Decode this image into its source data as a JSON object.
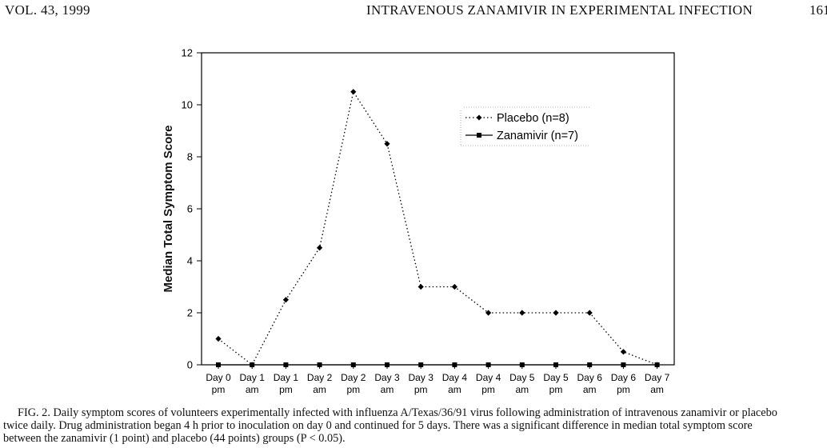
{
  "header": {
    "volume": "VOL. 43, 1999",
    "title": "INTRAVENOUS ZANAMIVIR IN EXPERIMENTAL INFECTION",
    "page": "161"
  },
  "chart_data": {
    "type": "line",
    "title": "",
    "xlabel": "",
    "ylabel": "Median Total Symptom Score",
    "ylim": [
      0,
      12
    ],
    "yticks": [
      0,
      2,
      4,
      6,
      8,
      10,
      12
    ],
    "categories": [
      [
        "Day 0",
        "pm"
      ],
      [
        "Day 1",
        "am"
      ],
      [
        "Day 1",
        "pm"
      ],
      [
        "Day 2",
        "am"
      ],
      [
        "Day 2",
        "pm"
      ],
      [
        "Day 3",
        "am"
      ],
      [
        "Day 3",
        "pm"
      ],
      [
        "Day 4",
        "am"
      ],
      [
        "Day 4",
        "pm"
      ],
      [
        "Day 5",
        "am"
      ],
      [
        "Day 5",
        "pm"
      ],
      [
        "Day 6",
        "am"
      ],
      [
        "Day 6",
        "pm"
      ],
      [
        "Day 7",
        "am"
      ]
    ],
    "series": [
      {
        "name": "Placebo (n=8)",
        "style": "dotted",
        "marker": "diamond",
        "values": [
          1,
          0,
          2.5,
          4.5,
          10.5,
          8.5,
          3,
          3,
          2,
          2,
          2,
          2,
          0.5,
          0
        ]
      },
      {
        "name": "Zanamivir (n=7)",
        "style": "solid",
        "marker": "square",
        "values": [
          0,
          0,
          0,
          0,
          0,
          0,
          0,
          0,
          0,
          0,
          0,
          0,
          0,
          0
        ]
      }
    ],
    "legend_position": "top-right",
    "grid": false
  },
  "caption": {
    "line1": "FIG. 2. Daily symptom scores of volunteers experimentally infected with influenza A/Texas/36/91 virus following administration of intravenous zanamivir or placebo",
    "line2": "twice daily. Drug administration began 4 h prior to inoculation on day 0 and continued for 5 days. There was a significant difference in median total symptom score",
    "line3": "between the zanamivir (1 point) and placebo (44 points) groups (P < 0.05)."
  }
}
